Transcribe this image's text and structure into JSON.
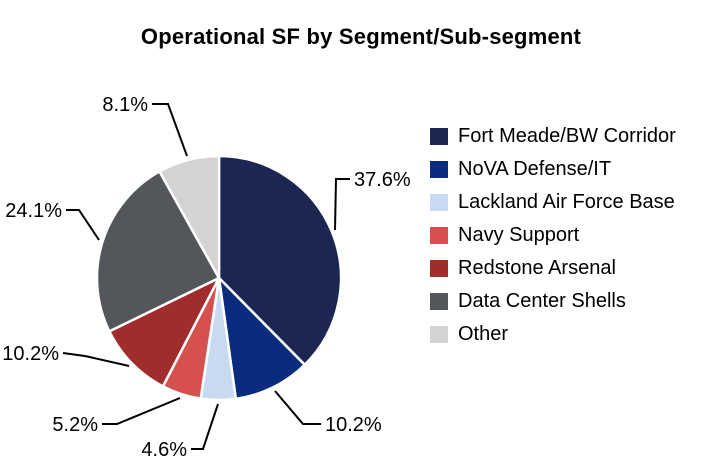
{
  "chart_data": {
    "type": "pie",
    "title": "Operational SF by Segment/Sub-segment",
    "start_angle_deg": 0,
    "direction": "clockwise",
    "legend_position": "right",
    "label_style": "percent-with-leader-lines",
    "slice_border_color": "#ffffff",
    "leader_line_color": "#000000",
    "segments": [
      {
        "label": "Fort Meade/BW Corridor",
        "value": 37.6,
        "display": "37.6%",
        "color": "#1c2653"
      },
      {
        "label": "NoVA Defense/IT",
        "value": 10.2,
        "display": "10.2%",
        "color": "#0a2c7e"
      },
      {
        "label": "Lackland Air Force Base",
        "value": 4.6,
        "display": "4.6%",
        "color": "#c8daf0"
      },
      {
        "label": "Navy Support",
        "value": 5.2,
        "display": "5.2%",
        "color": "#d65050"
      },
      {
        "label": "Redstone Arsenal",
        "value": 10.2,
        "display": "10.2%",
        "color": "#a02c2c"
      },
      {
        "label": "Data Center Shells",
        "value": 24.1,
        "display": "24.1%",
        "color": "#53575c"
      },
      {
        "label": "Other",
        "value": 8.1,
        "display": "8.1%",
        "color": "#d3d3d3"
      }
    ]
  }
}
